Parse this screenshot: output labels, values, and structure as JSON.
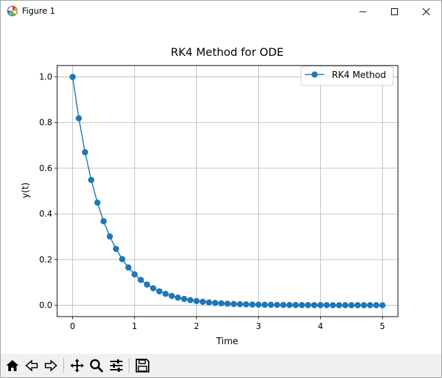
{
  "window": {
    "title": "Figure 1",
    "icon": "matplotlib-figure-icon",
    "controls": [
      "minimize-icon",
      "maximize-icon",
      "close-icon"
    ]
  },
  "toolbar": {
    "buttons": [
      {
        "name": "home-icon",
        "label": "Home"
      },
      {
        "name": "back-arrow-icon",
        "label": "Back"
      },
      {
        "name": "forward-arrow-icon",
        "label": "Forward"
      },
      {
        "name": "pan-icon",
        "label": "Pan"
      },
      {
        "name": "zoom-icon",
        "label": "Zoom"
      },
      {
        "name": "configure-subplots-icon",
        "label": "Configure subplots"
      },
      {
        "name": "save-icon",
        "label": "Save"
      }
    ]
  },
  "chart_data": {
    "type": "line",
    "title": "RK4 Method for ODE",
    "xlabel": "Time",
    "ylabel": "y(t)",
    "xlim": [
      -0.25,
      5.25
    ],
    "ylim": [
      -0.05,
      1.05
    ],
    "xticks": [
      0,
      1,
      2,
      3,
      4,
      5
    ],
    "xtick_labels": [
      "0",
      "1",
      "2",
      "3",
      "4",
      "5"
    ],
    "yticks": [
      0.0,
      0.2,
      0.4,
      0.6,
      0.8,
      1.0
    ],
    "ytick_labels": [
      "0.0",
      "0.2",
      "0.4",
      "0.6",
      "0.8",
      "1.0"
    ],
    "grid": true,
    "legend": {
      "position": "top-right",
      "entries": [
        "RK4 Method"
      ]
    },
    "colors": {
      "series": "#1f77b4",
      "grid": "#b0b0b0"
    },
    "series": [
      {
        "name": "RK4 Method",
        "marker": "circle",
        "x": [
          0.0,
          0.1,
          0.2,
          0.3,
          0.4,
          0.5,
          0.6,
          0.7,
          0.8,
          0.9,
          1.0,
          1.1,
          1.2,
          1.3,
          1.4,
          1.5,
          1.6,
          1.7,
          1.8,
          1.9,
          2.0,
          2.1,
          2.2,
          2.3,
          2.4,
          2.5,
          2.6,
          2.7,
          2.8,
          2.9,
          3.0,
          3.1,
          3.2,
          3.3,
          3.4,
          3.5,
          3.6,
          3.7,
          3.8,
          3.9,
          4.0,
          4.1,
          4.2,
          4.3,
          4.4,
          4.5,
          4.6,
          4.7,
          4.8,
          4.9,
          5.0
        ],
        "y": [
          1.0,
          0.8187,
          0.6703,
          0.5488,
          0.4493,
          0.3679,
          0.3012,
          0.2466,
          0.2019,
          0.1653,
          0.1353,
          0.1108,
          0.0907,
          0.0743,
          0.0608,
          0.0498,
          0.0408,
          0.0334,
          0.0273,
          0.0224,
          0.0183,
          0.015,
          0.0123,
          0.01,
          0.0082,
          0.0067,
          0.0055,
          0.0045,
          0.0037,
          0.003,
          0.0025,
          0.002,
          0.0017,
          0.0014,
          0.0011,
          0.0009,
          0.0007,
          0.0006,
          0.0005,
          0.0004,
          0.0003,
          0.0003,
          0.0002,
          0.0002,
          0.0002,
          0.0001,
          0.0001,
          0.0001,
          0.0001,
          0.0001,
          0.0
        ]
      }
    ]
  }
}
